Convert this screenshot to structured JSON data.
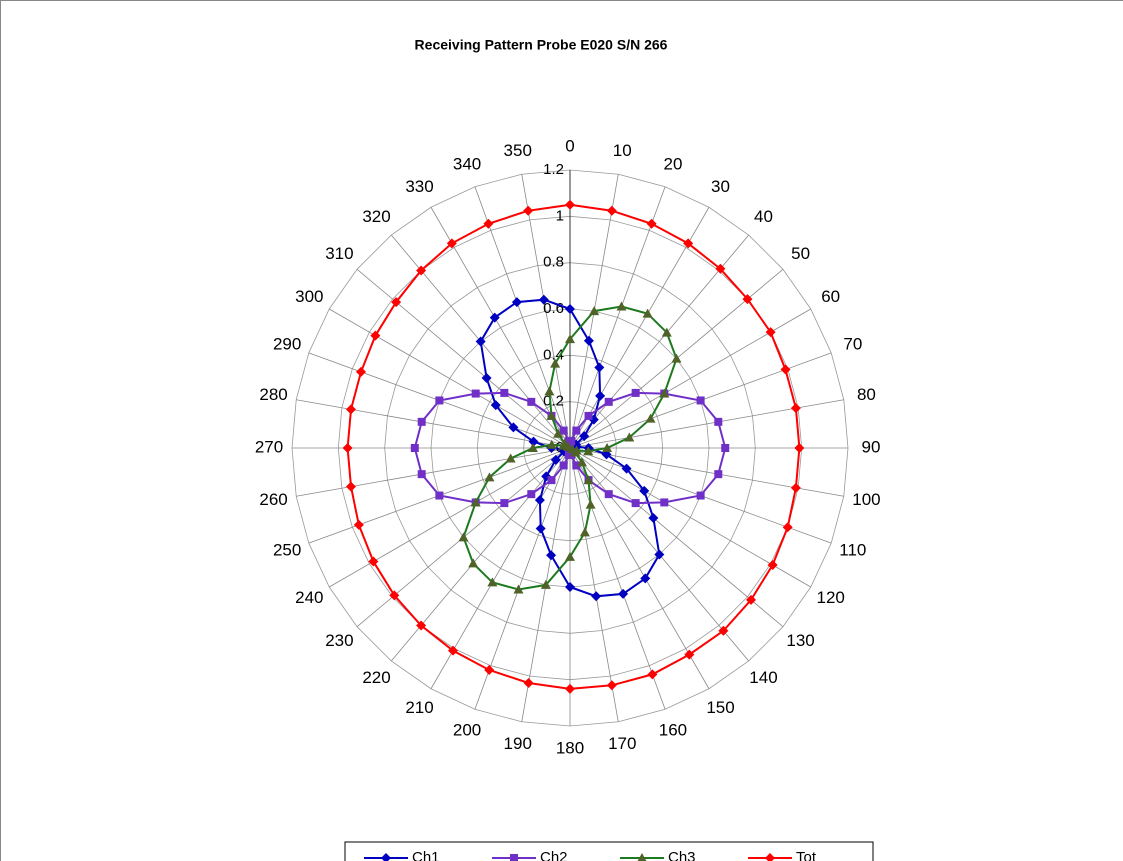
{
  "chart_data": {
    "type": "radar",
    "title": "Receiving Pattern Probe  E020 S/N 266",
    "categories": [
      "0",
      "10",
      "20",
      "30",
      "40",
      "50",
      "60",
      "70",
      "80",
      "90",
      "100",
      "110",
      "120",
      "130",
      "140",
      "150",
      "160",
      "170",
      "180",
      "190",
      "200",
      "210",
      "220",
      "230",
      "240",
      "250",
      "260",
      "270",
      "280",
      "290",
      "300",
      "310",
      "320",
      "330",
      "340",
      "350"
    ],
    "rlim": [
      0,
      1.2
    ],
    "rticks": [
      0,
      0.2,
      0.4,
      0.6,
      0.8,
      1,
      1.2
    ],
    "grid": true,
    "legend": "bottom",
    "series": [
      {
        "name": "Ch1",
        "color": "#0000c0",
        "marker": "diamond",
        "values": [
          0.6,
          0.47,
          0.37,
          0.26,
          0.16,
          0.08,
          0.03,
          0.01,
          0.03,
          0.08,
          0.16,
          0.26,
          0.37,
          0.47,
          0.6,
          0.65,
          0.67,
          0.65,
          0.6,
          0.47,
          0.37,
          0.26,
          0.16,
          0.08,
          0.03,
          0.01,
          0.03,
          0.08,
          0.16,
          0.26,
          0.37,
          0.47,
          0.6,
          0.65,
          0.67,
          0.65
        ]
      },
      {
        "name": "Ch2",
        "color": "#7030c8",
        "marker": "square",
        "values": [
          0.01,
          0.03,
          0.08,
          0.16,
          0.26,
          0.37,
          0.47,
          0.6,
          0.65,
          0.67,
          0.65,
          0.6,
          0.47,
          0.37,
          0.26,
          0.16,
          0.08,
          0.03,
          0.01,
          0.03,
          0.08,
          0.16,
          0.26,
          0.37,
          0.47,
          0.6,
          0.65,
          0.67,
          0.65,
          0.6,
          0.47,
          0.37,
          0.26,
          0.16,
          0.08,
          0.03
        ]
      },
      {
        "name": "Ch3",
        "color": "#1e7a1e",
        "marker": "triangle",
        "values": [
          0.47,
          0.6,
          0.65,
          0.67,
          0.65,
          0.6,
          0.47,
          0.37,
          0.26,
          0.16,
          0.08,
          0.03,
          0.01,
          0.03,
          0.08,
          0.16,
          0.26,
          0.37,
          0.47,
          0.6,
          0.65,
          0.67,
          0.65,
          0.6,
          0.47,
          0.37,
          0.26,
          0.16,
          0.08,
          0.03,
          0.01,
          0.03,
          0.08,
          0.16,
          0.26,
          0.37
        ]
      },
      {
        "name": "Tot",
        "color": "#ff0000",
        "marker": "diamond",
        "values": [
          1.05,
          1.04,
          1.03,
          1.02,
          1.01,
          1.0,
          1.0,
          0.99,
          0.99,
          0.99,
          0.99,
          1.0,
          1.01,
          1.02,
          1.03,
          1.03,
          1.04,
          1.04,
          1.04,
          1.03,
          1.02,
          1.01,
          1.0,
          0.99,
          0.98,
          0.97,
          0.96,
          0.96,
          0.96,
          0.96,
          0.97,
          0.98,
          1.0,
          1.02,
          1.03,
          1.04
        ]
      }
    ]
  }
}
